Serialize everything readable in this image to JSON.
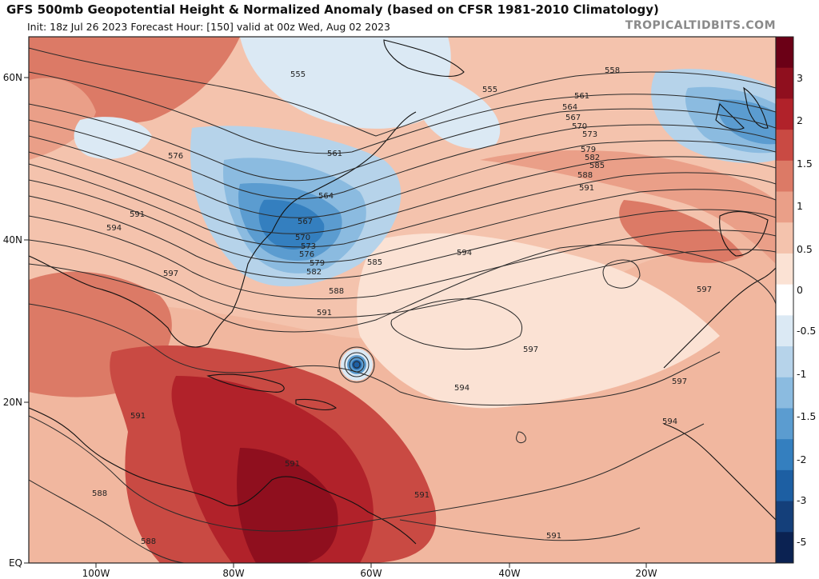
{
  "header": {
    "title": "GFS 500mb Geopotential Height & Normalized Anomaly (based on CFSR 1981-2010 Climatology)",
    "subtitle": "Init: 18z Jul 26 2023   Forecast Hour: [150]   valid at 00z Wed, Aug 02 2023",
    "credit": "TROPICALTIDBITS.COM"
  },
  "axes": {
    "lat_labels": [
      "60N",
      "40N",
      "20N",
      "EQ"
    ],
    "lon_labels": [
      "100W",
      "80W",
      "60W",
      "40W",
      "20W"
    ]
  },
  "colorbar": {
    "labels": [
      "3",
      "2",
      "1.5",
      "1",
      "0.5",
      "0",
      "-0.5",
      "-1",
      "-1.5",
      "-2",
      "-3",
      "-5"
    ],
    "colors": [
      "#6b0016",
      "#8f0f1e",
      "#b1222a",
      "#c94a43",
      "#dc7a66",
      "#ea9f88",
      "#f4c3ad",
      "#fbe2d4",
      "#ffffff",
      "#dbe9f4",
      "#b6d3ea",
      "#8bbbe0",
      "#5b9cd0",
      "#347fbf",
      "#1d5fa3",
      "#143f7a",
      "#0b2252"
    ]
  },
  "contours": {
    "labels": [
      "555",
      "555",
      "558",
      "561",
      "564",
      "567",
      "570",
      "573",
      "576",
      "579",
      "582",
      "585",
      "588",
      "591",
      "594",
      "597",
      "561",
      "564",
      "567",
      "570",
      "573",
      "576",
      "579",
      "582",
      "585",
      "588",
      "591",
      "594",
      "597",
      "597",
      "591",
      "594",
      "591",
      "591",
      "588",
      "588",
      "591",
      "594",
      "597",
      "591"
    ]
  },
  "colors": {
    "frame": "#222222",
    "contour": "#2a2a2a",
    "coast": "#111111"
  }
}
